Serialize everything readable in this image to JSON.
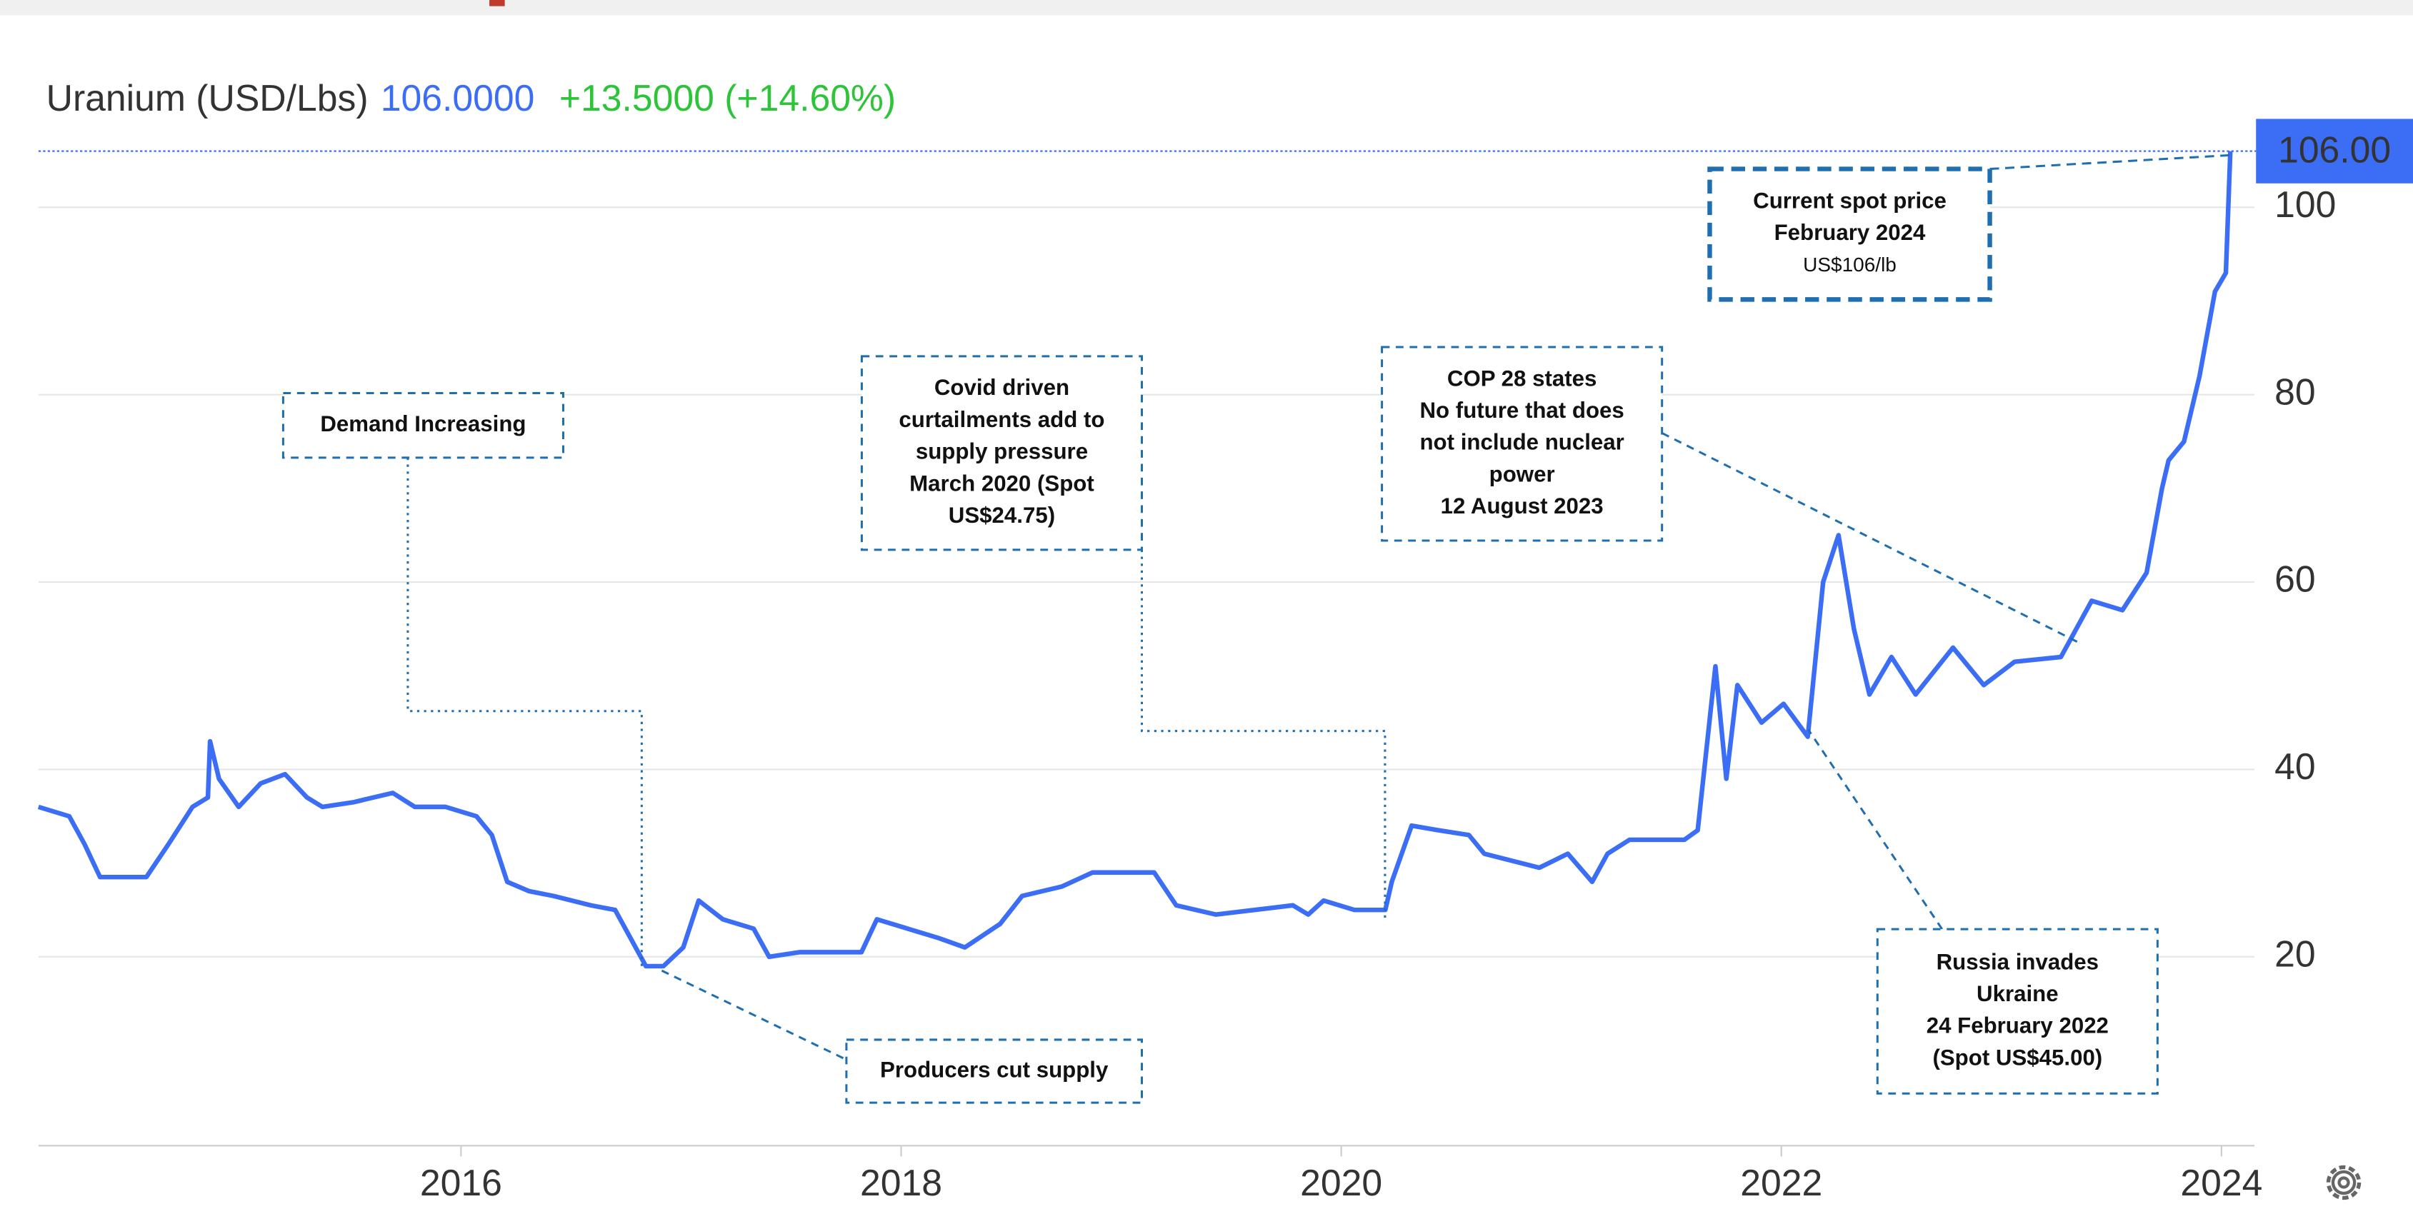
{
  "chart_data": {
    "type": "line",
    "title": "Uranium (USD/Lbs)",
    "price": "106.0000",
    "change": "+13.5000 (+14.60%)",
    "last_label": "106.00",
    "xlim": [
      2014.08,
      2024.15
    ],
    "xticks": [
      2016,
      2018,
      2020,
      2022,
      2024
    ],
    "ylim": [
      0,
      120
    ],
    "yticks": [
      20,
      40,
      60,
      80,
      100
    ],
    "grid": true,
    "series": [
      {
        "name": "Uranium",
        "color": "#3b6ef5",
        "x": [
          2014.08,
          2014.22,
          2014.29,
          2014.36,
          2014.57,
          2014.67,
          2014.78,
          2014.85,
          2014.86,
          2014.9,
          2014.99,
          2015.09,
          2015.2,
          2015.3,
          2015.37,
          2015.51,
          2015.69,
          2015.79,
          2015.93,
          2016.07,
          2016.14,
          2016.21,
          2016.31,
          2016.42,
          2016.59,
          2016.7,
          2016.77,
          2016.84,
          2016.92,
          2017.01,
          2017.08,
          2017.19,
          2017.33,
          2017.4,
          2017.54,
          2017.82,
          2017.89,
          2018.03,
          2018.17,
          2018.29,
          2018.45,
          2018.55,
          2018.73,
          2018.87,
          2019.15,
          2019.25,
          2019.43,
          2019.78,
          2019.85,
          2019.92,
          2020.06,
          2020.2,
          2020.23,
          2020.32,
          2020.44,
          2020.58,
          2020.65,
          2020.9,
          2021.03,
          2021.14,
          2021.21,
          2021.31,
          2021.56,
          2021.62,
          2021.7,
          2021.75,
          2021.8,
          2021.91,
          2022.01,
          2022.12,
          2022.19,
          2022.26,
          2022.33,
          2022.4,
          2022.5,
          2022.61,
          2022.78,
          2022.92,
          2023.06,
          2023.27,
          2023.41,
          2023.55,
          2023.66,
          2023.73,
          2023.76,
          2023.83,
          2023.9,
          2023.97,
          2024.02,
          2024.04
        ],
        "values": [
          36,
          35,
          32,
          28.5,
          28.5,
          32,
          36,
          37,
          43,
          39,
          36,
          38.5,
          39.5,
          37,
          36,
          36.5,
          37.5,
          36,
          36,
          35,
          33,
          28,
          27,
          26.5,
          25.5,
          25,
          22,
          19,
          19,
          21,
          26,
          24,
          23,
          20,
          20.5,
          20.5,
          24,
          23,
          22,
          21,
          23.5,
          26.5,
          27.5,
          29,
          29,
          25.5,
          24.5,
          25.5,
          24.5,
          26,
          25,
          25,
          28,
          34,
          33.5,
          33,
          31,
          29.5,
          31,
          28,
          31,
          32.5,
          32.5,
          33.5,
          51,
          39,
          49,
          45,
          47,
          43.5,
          60,
          65,
          55,
          48,
          52,
          48,
          53,
          49,
          51.5,
          52,
          58,
          57,
          61,
          70,
          73,
          75,
          82,
          91,
          93,
          106
        ]
      }
    ],
    "annotations": [
      {
        "lines": [
          "Demand Increasing"
        ]
      },
      {
        "lines": [
          "Producers cut supply"
        ]
      },
      {
        "lines": [
          "Covid driven",
          "curtailments add to",
          "supply pressure",
          "March 2020  (Spot",
          "US$24.75)"
        ]
      },
      {
        "lines": [
          "COP 28 states",
          "No future that does",
          "not include nuclear",
          "power",
          "12 August 2023"
        ]
      },
      {
        "lines": [
          "Current spot price",
          "February 2024",
          "US$106/lb"
        ]
      },
      {
        "lines": [
          "Russia invades",
          "Ukraine",
          "24 February 2022",
          "(Spot US$45.00)"
        ]
      }
    ]
  }
}
